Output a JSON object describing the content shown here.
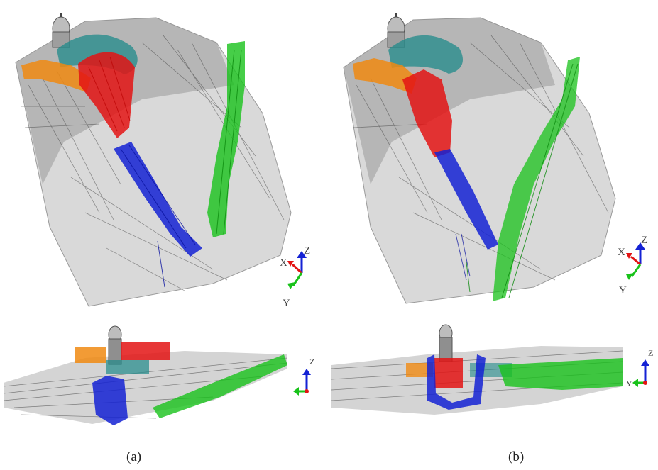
{
  "panels": [
    {
      "caption": "(a)",
      "triad_top": {
        "x": "X",
        "y": "Y",
        "z": "Z"
      },
      "triad_bottom": {
        "z": "Z"
      }
    },
    {
      "caption": "(b)",
      "triad_top": {
        "x": "X",
        "y": "Y",
        "z": "Z"
      },
      "triad_bottom": {
        "y": "Y",
        "z": "Z"
      }
    }
  ],
  "colors": {
    "orange": "#f08a12",
    "red": "#e31414",
    "teal": "#1f8a8a",
    "blue": "#1422d4",
    "green": "#18c21a",
    "mesh": "#4a4a4a",
    "surface": "#d9d9d9"
  }
}
